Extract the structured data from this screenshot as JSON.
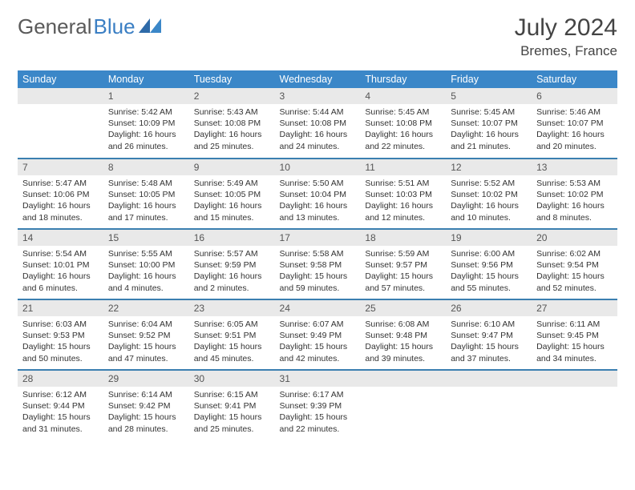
{
  "brand": {
    "part1": "General",
    "part2": "Blue"
  },
  "title": "July 2024",
  "location": "Bremes, France",
  "colors": {
    "header_bg": "#3b87c8",
    "daynum_bg": "#e9e9e9",
    "row_border": "#3b7fb0",
    "text": "#333333",
    "title_text": "#444444",
    "logo_gray": "#5a5a5a",
    "logo_blue": "#3b7fc4"
  },
  "weekdays": [
    "Sunday",
    "Monday",
    "Tuesday",
    "Wednesday",
    "Thursday",
    "Friday",
    "Saturday"
  ],
  "weeks": [
    [
      null,
      {
        "n": "1",
        "sr": "5:42 AM",
        "ss": "10:09 PM",
        "dl": "16 hours and 26 minutes."
      },
      {
        "n": "2",
        "sr": "5:43 AM",
        "ss": "10:08 PM",
        "dl": "16 hours and 25 minutes."
      },
      {
        "n": "3",
        "sr": "5:44 AM",
        "ss": "10:08 PM",
        "dl": "16 hours and 24 minutes."
      },
      {
        "n": "4",
        "sr": "5:45 AM",
        "ss": "10:08 PM",
        "dl": "16 hours and 22 minutes."
      },
      {
        "n": "5",
        "sr": "5:45 AM",
        "ss": "10:07 PM",
        "dl": "16 hours and 21 minutes."
      },
      {
        "n": "6",
        "sr": "5:46 AM",
        "ss": "10:07 PM",
        "dl": "16 hours and 20 minutes."
      }
    ],
    [
      {
        "n": "7",
        "sr": "5:47 AM",
        "ss": "10:06 PM",
        "dl": "16 hours and 18 minutes."
      },
      {
        "n": "8",
        "sr": "5:48 AM",
        "ss": "10:05 PM",
        "dl": "16 hours and 17 minutes."
      },
      {
        "n": "9",
        "sr": "5:49 AM",
        "ss": "10:05 PM",
        "dl": "16 hours and 15 minutes."
      },
      {
        "n": "10",
        "sr": "5:50 AM",
        "ss": "10:04 PM",
        "dl": "16 hours and 13 minutes."
      },
      {
        "n": "11",
        "sr": "5:51 AM",
        "ss": "10:03 PM",
        "dl": "16 hours and 12 minutes."
      },
      {
        "n": "12",
        "sr": "5:52 AM",
        "ss": "10:02 PM",
        "dl": "16 hours and 10 minutes."
      },
      {
        "n": "13",
        "sr": "5:53 AM",
        "ss": "10:02 PM",
        "dl": "16 hours and 8 minutes."
      }
    ],
    [
      {
        "n": "14",
        "sr": "5:54 AM",
        "ss": "10:01 PM",
        "dl": "16 hours and 6 minutes."
      },
      {
        "n": "15",
        "sr": "5:55 AM",
        "ss": "10:00 PM",
        "dl": "16 hours and 4 minutes."
      },
      {
        "n": "16",
        "sr": "5:57 AM",
        "ss": "9:59 PM",
        "dl": "16 hours and 2 minutes."
      },
      {
        "n": "17",
        "sr": "5:58 AM",
        "ss": "9:58 PM",
        "dl": "15 hours and 59 minutes."
      },
      {
        "n": "18",
        "sr": "5:59 AM",
        "ss": "9:57 PM",
        "dl": "15 hours and 57 minutes."
      },
      {
        "n": "19",
        "sr": "6:00 AM",
        "ss": "9:56 PM",
        "dl": "15 hours and 55 minutes."
      },
      {
        "n": "20",
        "sr": "6:02 AM",
        "ss": "9:54 PM",
        "dl": "15 hours and 52 minutes."
      }
    ],
    [
      {
        "n": "21",
        "sr": "6:03 AM",
        "ss": "9:53 PM",
        "dl": "15 hours and 50 minutes."
      },
      {
        "n": "22",
        "sr": "6:04 AM",
        "ss": "9:52 PM",
        "dl": "15 hours and 47 minutes."
      },
      {
        "n": "23",
        "sr": "6:05 AM",
        "ss": "9:51 PM",
        "dl": "15 hours and 45 minutes."
      },
      {
        "n": "24",
        "sr": "6:07 AM",
        "ss": "9:49 PM",
        "dl": "15 hours and 42 minutes."
      },
      {
        "n": "25",
        "sr": "6:08 AM",
        "ss": "9:48 PM",
        "dl": "15 hours and 39 minutes."
      },
      {
        "n": "26",
        "sr": "6:10 AM",
        "ss": "9:47 PM",
        "dl": "15 hours and 37 minutes."
      },
      {
        "n": "27",
        "sr": "6:11 AM",
        "ss": "9:45 PM",
        "dl": "15 hours and 34 minutes."
      }
    ],
    [
      {
        "n": "28",
        "sr": "6:12 AM",
        "ss": "9:44 PM",
        "dl": "15 hours and 31 minutes."
      },
      {
        "n": "29",
        "sr": "6:14 AM",
        "ss": "9:42 PM",
        "dl": "15 hours and 28 minutes."
      },
      {
        "n": "30",
        "sr": "6:15 AM",
        "ss": "9:41 PM",
        "dl": "15 hours and 25 minutes."
      },
      {
        "n": "31",
        "sr": "6:17 AM",
        "ss": "9:39 PM",
        "dl": "15 hours and 22 minutes."
      },
      null,
      null,
      null
    ]
  ],
  "labels": {
    "sunrise": "Sunrise:",
    "sunset": "Sunset:",
    "daylight": "Daylight:"
  }
}
